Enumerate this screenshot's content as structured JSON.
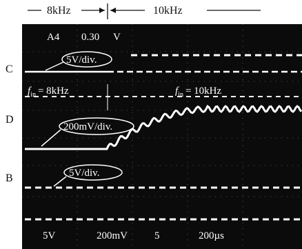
{
  "header": {
    "left_frequency": "8kHz",
    "right_frequency": "10kHz"
  },
  "screen_top": {
    "channel": "A4",
    "level": "0.30",
    "unit": "V"
  },
  "channels": [
    {
      "letter": "C",
      "scale": "5V/div."
    },
    {
      "letter": "D",
      "scale": "200mV/div."
    },
    {
      "letter": "B",
      "scale": "5V/div."
    }
  ],
  "frequency_labels": [
    {
      "symbol": "f",
      "subscript": "in",
      "value": "= 8kHz"
    },
    {
      "symbol": "f",
      "subscript": "in",
      "value": "= 10kHz"
    }
  ],
  "screen_bottom": {
    "ch1_scale": "5V",
    "ch2_scale": "200mV",
    "marker": "5",
    "timebase": "200µs"
  }
}
